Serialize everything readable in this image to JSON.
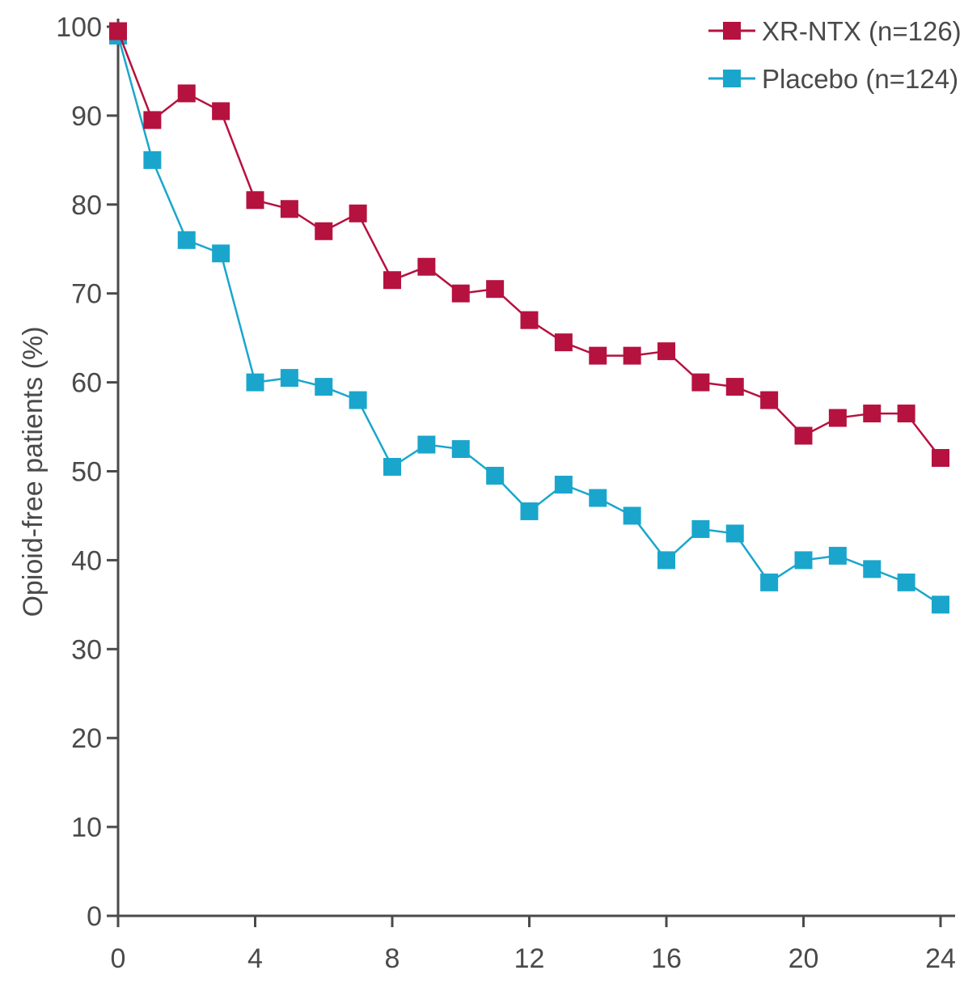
{
  "chart_data": {
    "type": "line",
    "title": "",
    "xlabel": "",
    "ylabel": "Opioid-free patients (%)",
    "x": [
      0,
      1,
      2,
      3,
      4,
      5,
      6,
      7,
      8,
      9,
      10,
      11,
      12,
      13,
      14,
      15,
      16,
      17,
      18,
      19,
      20,
      21,
      22,
      23,
      24
    ],
    "xticks": [
      0,
      4,
      8,
      12,
      16,
      20,
      24
    ],
    "yticks": [
      0,
      10,
      20,
      30,
      40,
      50,
      60,
      70,
      80,
      90,
      100
    ],
    "xlim": [
      0,
      24
    ],
    "ylim": [
      0,
      100
    ],
    "grid": false,
    "legend_position": "top-right",
    "series": [
      {
        "name": "XR-NTX (n=126)",
        "color": "#b5123f",
        "values": [
          99.5,
          89.5,
          92.5,
          90.5,
          80.5,
          79.5,
          77.0,
          79.0,
          71.5,
          73.0,
          70.0,
          70.5,
          67.0,
          64.5,
          63.0,
          63.0,
          63.5,
          60.0,
          59.5,
          58.0,
          54.0,
          56.0,
          56.5,
          56.5,
          51.5
        ]
      },
      {
        "name": "Placebo (n=124)",
        "color": "#1aa6cc",
        "values": [
          99.0,
          85.0,
          76.0,
          74.5,
          60.0,
          60.5,
          59.5,
          58.0,
          50.5,
          53.0,
          52.5,
          49.5,
          45.5,
          48.5,
          47.0,
          45.0,
          40.0,
          43.5,
          43.0,
          37.5,
          40.0,
          40.5,
          39.0,
          37.5,
          35.0
        ]
      }
    ]
  }
}
